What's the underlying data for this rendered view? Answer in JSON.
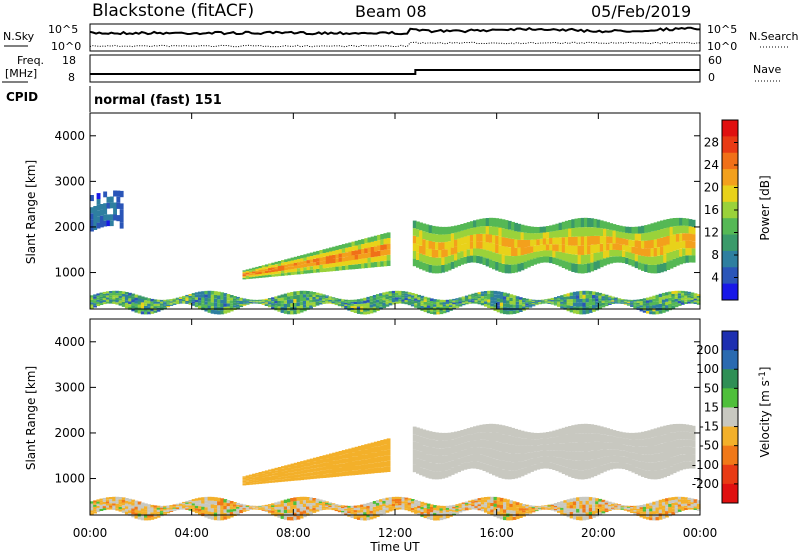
{
  "header": {
    "station": "Blackstone (fitACF)",
    "beam": "Beam 08",
    "date": "05/Feb/2019"
  },
  "noise_panel": {
    "left_label": "N.Sky",
    "right_label": "N.Search",
    "y_ticks": [
      "10^5",
      "10^0"
    ]
  },
  "freq_panel": {
    "left_label_1": "Freq.",
    "left_label_2": "[MHz]",
    "left_ticks": [
      "18",
      "8"
    ],
    "right_label": "Nave",
    "right_ticks": [
      "60",
      "0"
    ]
  },
  "cpid": {
    "label": "CPID",
    "value": "normal (fast) 151"
  },
  "chart_data": [
    {
      "type": "heatmap",
      "name": "power",
      "ylabel": "Slant Range [km]",
      "ylim": [
        200,
        4500
      ],
      "y_ticks": [
        "4000",
        "3000",
        "2000",
        "1000"
      ],
      "colorbar_label": "Power [dB]",
      "colorbar_ticks": [
        "28",
        "24",
        "20",
        "16",
        "12",
        "8",
        "4"
      ],
      "colorbar_range": [
        0,
        32
      ],
      "colors": [
        "#1818e8",
        "#2a55b8",
        "#2e7fa0",
        "#3a9a6a",
        "#55b855",
        "#9ad23a",
        "#e8d21a",
        "#f3a01c",
        "#f07018",
        "#e83a14",
        "#e01010"
      ],
      "regions": [
        {
          "label": "main_echo_early",
          "t_start": 6.0,
          "t_end": 11.8,
          "range_low": 850,
          "range_high": 1900,
          "mean_power": 25
        },
        {
          "label": "main_echo_late",
          "t_start": 12.7,
          "t_end": 23.8,
          "range_low": 1100,
          "range_high": 2100,
          "mean_power": 22
        },
        {
          "label": "near_range_clutter",
          "t_start": 0.0,
          "t_end": 24.0,
          "range_low": 200,
          "range_high": 500,
          "mean_power": 10
        },
        {
          "label": "far_range_echo",
          "t_start": 0.0,
          "t_end": 1.3,
          "range_low": 1900,
          "range_high": 2700,
          "mean_power": 6
        }
      ]
    },
    {
      "type": "heatmap",
      "name": "velocity",
      "ylabel": "Slant Range [km]",
      "ylim": [
        200,
        4500
      ],
      "y_ticks": [
        "4000",
        "3000",
        "2000",
        "1000"
      ],
      "colorbar_label": "Velocity [m s",
      "colorbar_label_sup": "-1",
      "colorbar_label_end": "]",
      "colorbar_ticks": [
        "200",
        "100",
        "50",
        "15",
        "-15",
        "-50",
        "-100",
        "-200"
      ],
      "colors": [
        "#1d2fb0",
        "#2a6ab0",
        "#2f8f55",
        "#4fbf3a",
        "#c8c8c0",
        "#f3b02a",
        "#f07818",
        "#e83a14",
        "#e01010"
      ],
      "regions": [
        {
          "label": "main_echo_early",
          "t_start": 6.0,
          "t_end": 11.8,
          "range_low": 850,
          "range_high": 1900,
          "velocity": -40
        },
        {
          "label": "main_echo_late",
          "t_start": 12.7,
          "t_end": 23.8,
          "range_low": 1100,
          "range_high": 2100,
          "velocity": 0
        },
        {
          "label": "near_range_clutter",
          "t_start": 0.0,
          "t_end": 24.0,
          "range_low": 200,
          "range_high": 500,
          "velocity": -20
        }
      ]
    }
  ],
  "x_axis": {
    "title": "Time UT",
    "ticks": [
      "00:00",
      "04:00",
      "08:00",
      "12:00",
      "16:00",
      "20:00",
      "00:00"
    ],
    "xlim": [
      0,
      24
    ]
  }
}
